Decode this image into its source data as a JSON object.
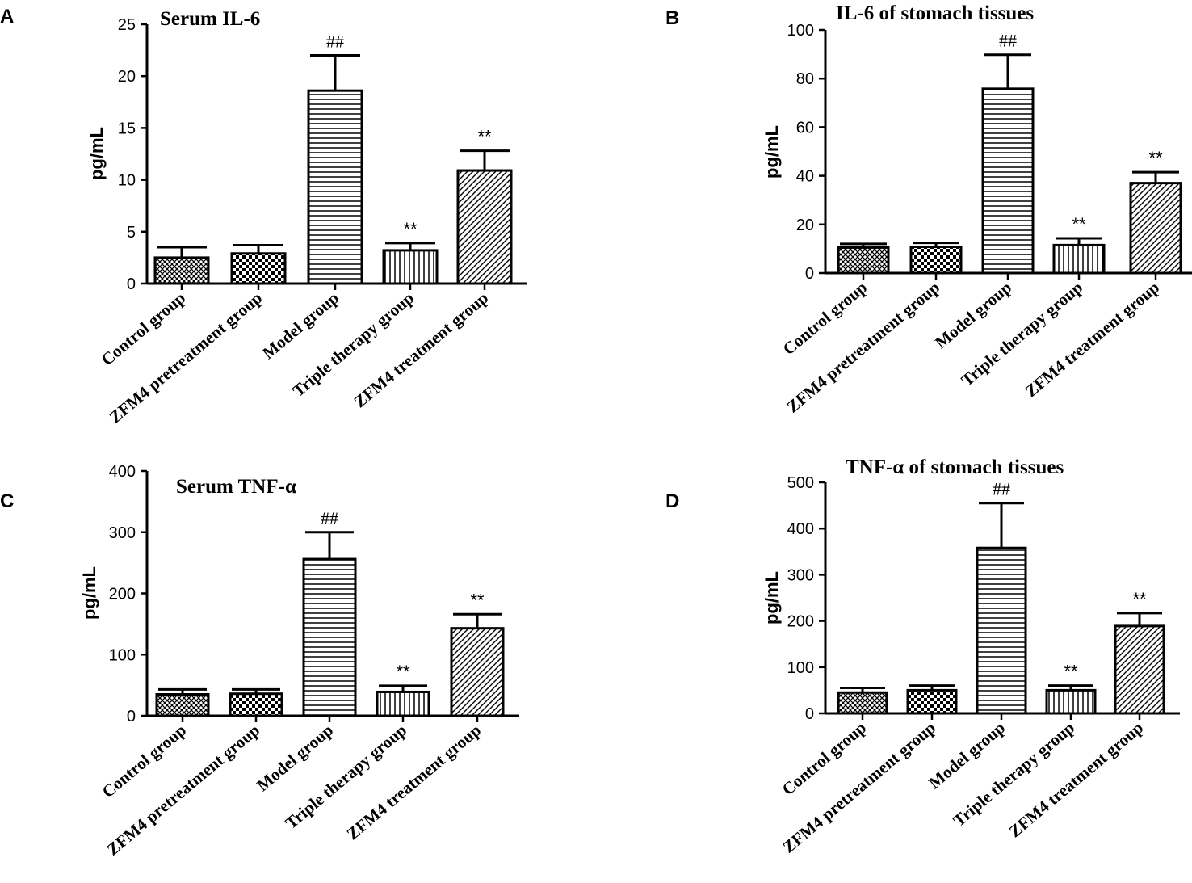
{
  "patterns": [
    "crosshatch-fine",
    "checker",
    "horizontal-lines",
    "vertical-lines",
    "diagonal-lines"
  ],
  "chart_data": [
    {
      "id": "A",
      "type": "bar",
      "letter": "A",
      "title": "Serum IL-6",
      "ylabel": "pg/mL",
      "xlabel": "",
      "ylim": [
        0,
        25
      ],
      "yticks": [
        0,
        5,
        10,
        15,
        20,
        25
      ],
      "categories": [
        "Control group",
        "ZFM4 pretreatment group",
        "Model group",
        "Triple  therapy group",
        "ZFM4 treatment group"
      ],
      "values": [
        2.5,
        2.9,
        18.6,
        3.2,
        10.9
      ],
      "errors": [
        1.0,
        0.8,
        3.4,
        0.7,
        1.9
      ],
      "significance": [
        "",
        "",
        "##",
        "**",
        "**"
      ]
    },
    {
      "id": "B",
      "type": "bar",
      "letter": "B",
      "title": "IL-6 of stomach tissues",
      "ylabel": "pg/mL",
      "xlabel": "",
      "ylim": [
        0,
        100
      ],
      "yticks": [
        0,
        20,
        40,
        60,
        80,
        100
      ],
      "categories": [
        "Control group",
        "ZFM4 pretreatment group",
        "Model group",
        "Triple  therapy group",
        "ZFM4 treatment group"
      ],
      "values": [
        10.5,
        10.8,
        75.8,
        11.5,
        37.0
      ],
      "errors": [
        1.5,
        1.6,
        14.0,
        2.8,
        4.5
      ],
      "significance": [
        "",
        "",
        "##",
        "**",
        "**"
      ]
    },
    {
      "id": "C",
      "type": "bar",
      "letter": "C",
      "title": "Serum TNF-α",
      "ylabel": "pg/mL",
      "xlabel": "",
      "ylim": [
        0,
        400
      ],
      "yticks": [
        0,
        100,
        200,
        300,
        400
      ],
      "categories": [
        "Control group",
        "ZFM4 pretreatment group",
        "Model group",
        "Triple  therapy group",
        "ZFM4 treatment group"
      ],
      "values": [
        35,
        36,
        256,
        39,
        143
      ],
      "errors": [
        8,
        7,
        44,
        10,
        23
      ],
      "significance": [
        "",
        "",
        "##",
        "**",
        "**"
      ]
    },
    {
      "id": "D",
      "type": "bar",
      "letter": "D",
      "title": "TNF-α of stomach tissues",
      "ylabel": "pg/mL",
      "xlabel": "",
      "ylim": [
        0,
        500
      ],
      "yticks": [
        0,
        100,
        200,
        300,
        400,
        500
      ],
      "categories": [
        "Control group",
        "ZFM4 pretreatment group",
        "Model group",
        "Triple  therapy group",
        "ZFM4 treatment group"
      ],
      "values": [
        45,
        50,
        358,
        50,
        189
      ],
      "errors": [
        10,
        10,
        97,
        10,
        28
      ],
      "significance": [
        "",
        "",
        "##",
        "**",
        "**"
      ]
    }
  ]
}
